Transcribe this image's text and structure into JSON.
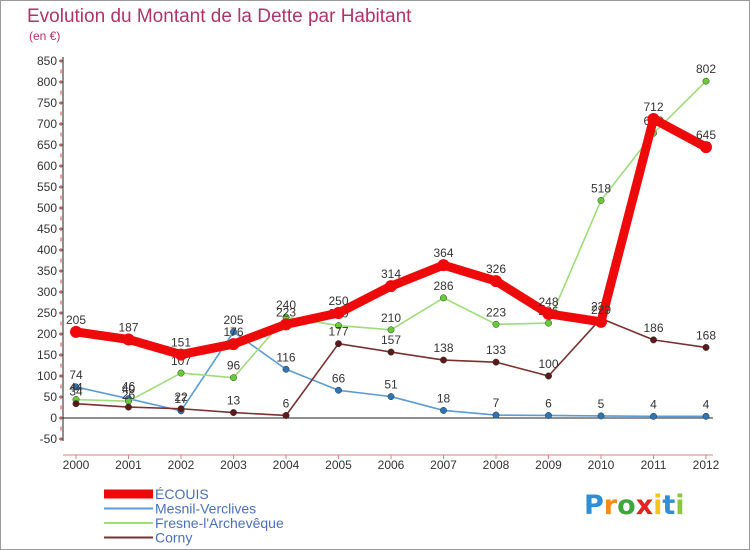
{
  "title": "Evolution du Montant de la Dette par Habitant",
  "unit": "(en €)",
  "logo": {
    "text": "Proxiti",
    "letters": [
      "P",
      "r",
      "o",
      "x",
      "i",
      "t",
      "i"
    ],
    "letter_colors": [
      "#2f8fd6",
      "#f28c1c",
      "#3da63d",
      "#e02424",
      "#f2c41c",
      "#2f8fd6",
      "#8cc63f"
    ]
  },
  "chart_data": {
    "type": "line",
    "x": [
      "2000",
      "2001",
      "2002",
      "2003",
      "2004",
      "2005",
      "2006",
      "2007",
      "2008",
      "2009",
      "2010",
      "2011",
      "2012"
    ],
    "ylim": [
      -50,
      850
    ],
    "yticks": [
      "-50",
      "0",
      "50",
      "100",
      "150",
      "200",
      "250",
      "300",
      "350",
      "400",
      "450",
      "500",
      "550",
      "600",
      "650",
      "700",
      "750",
      "800",
      "850"
    ],
    "grid": false,
    "legend_position": "bottom-left",
    "series": [
      {
        "name": "Mesnil-Verclives",
        "color": "#5b9bd5",
        "marker": "#2e75b6",
        "values": [
          74,
          46,
          17,
          205,
          116,
          66,
          51,
          18,
          7,
          6,
          5,
          4,
          4
        ],
        "labels": [
          "74",
          "46",
          "17",
          "205",
          "116",
          "66",
          "51",
          "18",
          "7",
          "6",
          "5",
          "4",
          "4"
        ]
      },
      {
        "name": "Fresne-l'Archevêque",
        "color": "#9fdc7a",
        "marker": "#66cc33",
        "values": [
          44,
          40,
          107,
          96,
          240,
          220,
          210,
          286,
          223,
          226,
          518,
          678,
          802
        ],
        "labels": [
          "44",
          "40",
          "107",
          "96",
          "240",
          "220",
          "210",
          "286",
          "223",
          "226",
          "518",
          "678",
          "802"
        ]
      },
      {
        "name": "Corny",
        "color": "#7b3030",
        "marker": "#5c1a1a",
        "values": [
          34,
          26,
          22,
          13,
          6,
          177,
          157,
          138,
          133,
          100,
          237,
          186,
          168
        ],
        "labels": [
          "34",
          "26",
          "22",
          "13",
          "6",
          "177",
          "157",
          "138",
          "133",
          "100",
          "237",
          "186",
          "168"
        ]
      },
      {
        "name": "ÉCOUIS",
        "color": "#ee0a0a",
        "marker": "#ee0a0a",
        "values": [
          205,
          187,
          151,
          176,
          223,
          250,
          314,
          364,
          326,
          248,
          229,
          712,
          645
        ],
        "labels": [
          "205",
          "187",
          "151",
          "176",
          "223",
          "250",
          "314",
          "364",
          "326",
          "248",
          "229",
          "712",
          "645"
        ]
      }
    ],
    "legend": [
      "ÉCOUIS",
      "Mesnil-Verclives",
      "Fresne-l'Archevêque",
      "Corny"
    ]
  }
}
